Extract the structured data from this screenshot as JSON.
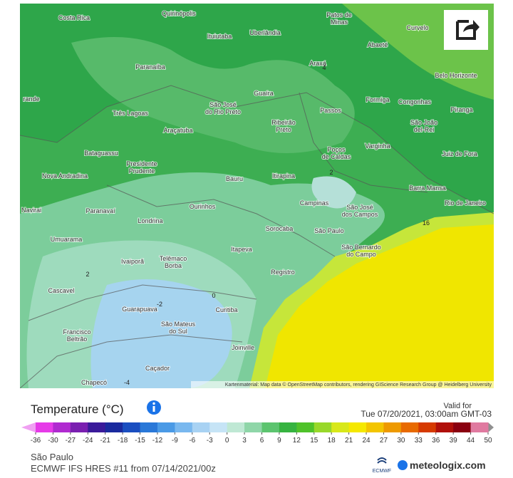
{
  "map": {
    "cities": [
      [
        "Costa Rica"
      ],
      [
        "Quirinópolis"
      ],
      [
        "Patos de",
        "Minas"
      ],
      [
        "Curvelo"
      ],
      [
        "Ituiutaba"
      ],
      [
        "Uberlândia"
      ],
      [
        "Abaeté"
      ],
      [
        "Paranaíba"
      ],
      [
        "Araxá"
      ],
      [
        "Belo Horizonte"
      ],
      [
        "Guaíra"
      ],
      [
        "Formiga"
      ],
      [
        "Congonhas"
      ],
      [
        "rande"
      ],
      [
        "São José",
        "do Rio Preto"
      ],
      [
        "Três Lagoas"
      ],
      [
        "Passos"
      ],
      [
        "Piranga"
      ],
      [
        "Ribeirão",
        "Preto"
      ],
      [
        "São João",
        "del-Rei"
      ],
      [
        "Araçatuba"
      ],
      [
        "Poços",
        "de Caldas"
      ],
      [
        "Varginha"
      ],
      [
        "Juiz de Fora"
      ],
      [
        "Bataguassu"
      ],
      [
        "Presidente",
        "Prudente"
      ],
      [
        "Nova Andradina"
      ],
      [
        "Itirapina"
      ],
      [
        "Bauru"
      ],
      [
        "Barra Mansa"
      ],
      [
        "Campinas"
      ],
      [
        "São José",
        "dos Campos"
      ],
      [
        "Rio de Janeiro"
      ],
      [
        "Navirai"
      ],
      [
        "Paranavaí"
      ],
      [
        "Ourinhos"
      ],
      [
        "Londrina"
      ],
      [
        "Sorocaba"
      ],
      [
        "São Paulo"
      ],
      [
        "Umuarama"
      ],
      [
        "São Bernardo",
        "do Campo"
      ],
      [
        "Telêmaco",
        "Borba"
      ],
      [
        "Itapeva"
      ],
      [
        "Ivaiporã"
      ],
      [
        "Registro"
      ],
      [
        "Cascavel"
      ],
      [
        "Guarapuava"
      ],
      [
        "Curitiba"
      ],
      [
        "São Mateus",
        "do Sul"
      ],
      [
        "Francisco",
        "Beltrão"
      ],
      [
        "Joinville"
      ],
      [
        "Caçador"
      ],
      [
        "Chapecó"
      ]
    ],
    "contours": [
      "4",
      "2",
      "2",
      "0",
      "-2",
      "-4",
      "16"
    ],
    "attribution": "Kartenmaterial: Map data © OpenStreetMap contributors, rendering GIScience Research Group @ Heidelberg University"
  },
  "legend": {
    "title": "Temperature (°C)",
    "valid_label": "Valid for",
    "valid_time": "Tue 07/20/2021, 03:00am GMT-03",
    "ticks": [
      -36,
      -30,
      -27,
      -24,
      -21,
      -18,
      -15,
      -12,
      -9,
      -6,
      -3,
      0,
      3,
      6,
      9,
      12,
      15,
      18,
      21,
      24,
      27,
      30,
      33,
      36,
      39,
      44,
      50
    ]
  },
  "footer": {
    "location": "São Paulo",
    "model": "ECMWF IFS HRES #11 from 07/14/2021/00z",
    "logo_small": "ECMWF",
    "brand": "meteologix.com"
  }
}
